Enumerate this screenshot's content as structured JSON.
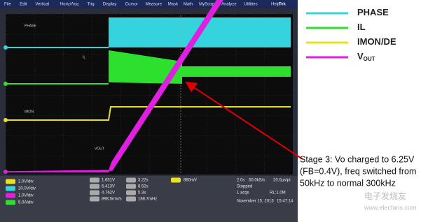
{
  "menu": [
    "File",
    "Edit",
    "Vertical",
    "Horiz/Acq",
    "Trig",
    "Display",
    "Cursor",
    "Measure",
    "Mask",
    "Math",
    "MyScope",
    "Analyze",
    "Utilities",
    "Help"
  ],
  "brand": "Tek",
  "trace_labels": [
    "PHASE",
    "IL",
    "IMON",
    "VOUT"
  ],
  "channel_scales": [
    "2.0V/div",
    "20.0V/div",
    "1.0V/div",
    "5.0A/div"
  ],
  "measurements": [
    [
      "1.651V",
      "3.22s"
    ],
    [
      "6.413V",
      "8.52s"
    ],
    [
      "4.762V",
      "5.3s"
    ],
    [
      "898.5mV/s",
      "188.7mHz"
    ]
  ],
  "trigger": "880mV",
  "acquisition": {
    "time_div": "2.0s",
    "sample_rate": "50.0kS/s",
    "resolution": "20.0µs/pt",
    "state": "Stopped",
    "acqs": "1 acqs",
    "record_length": "RL:1.0M",
    "date": "November 15, 2013",
    "time": "15:47:14"
  },
  "legend": [
    {
      "label": "PHASE"
    },
    {
      "label": "IL"
    },
    {
      "label": "IMON/DE"
    },
    {
      "label": "V",
      "sub": "OUT"
    }
  ],
  "annotation": [
    "Stage 3: Vo charged to 6.25V",
    "(FB=0.4V), freq switched from",
    "50kHz to normal 300kHz"
  ],
  "watermark": [
    "电子发烧友",
    "www.elecfans.com"
  ]
}
